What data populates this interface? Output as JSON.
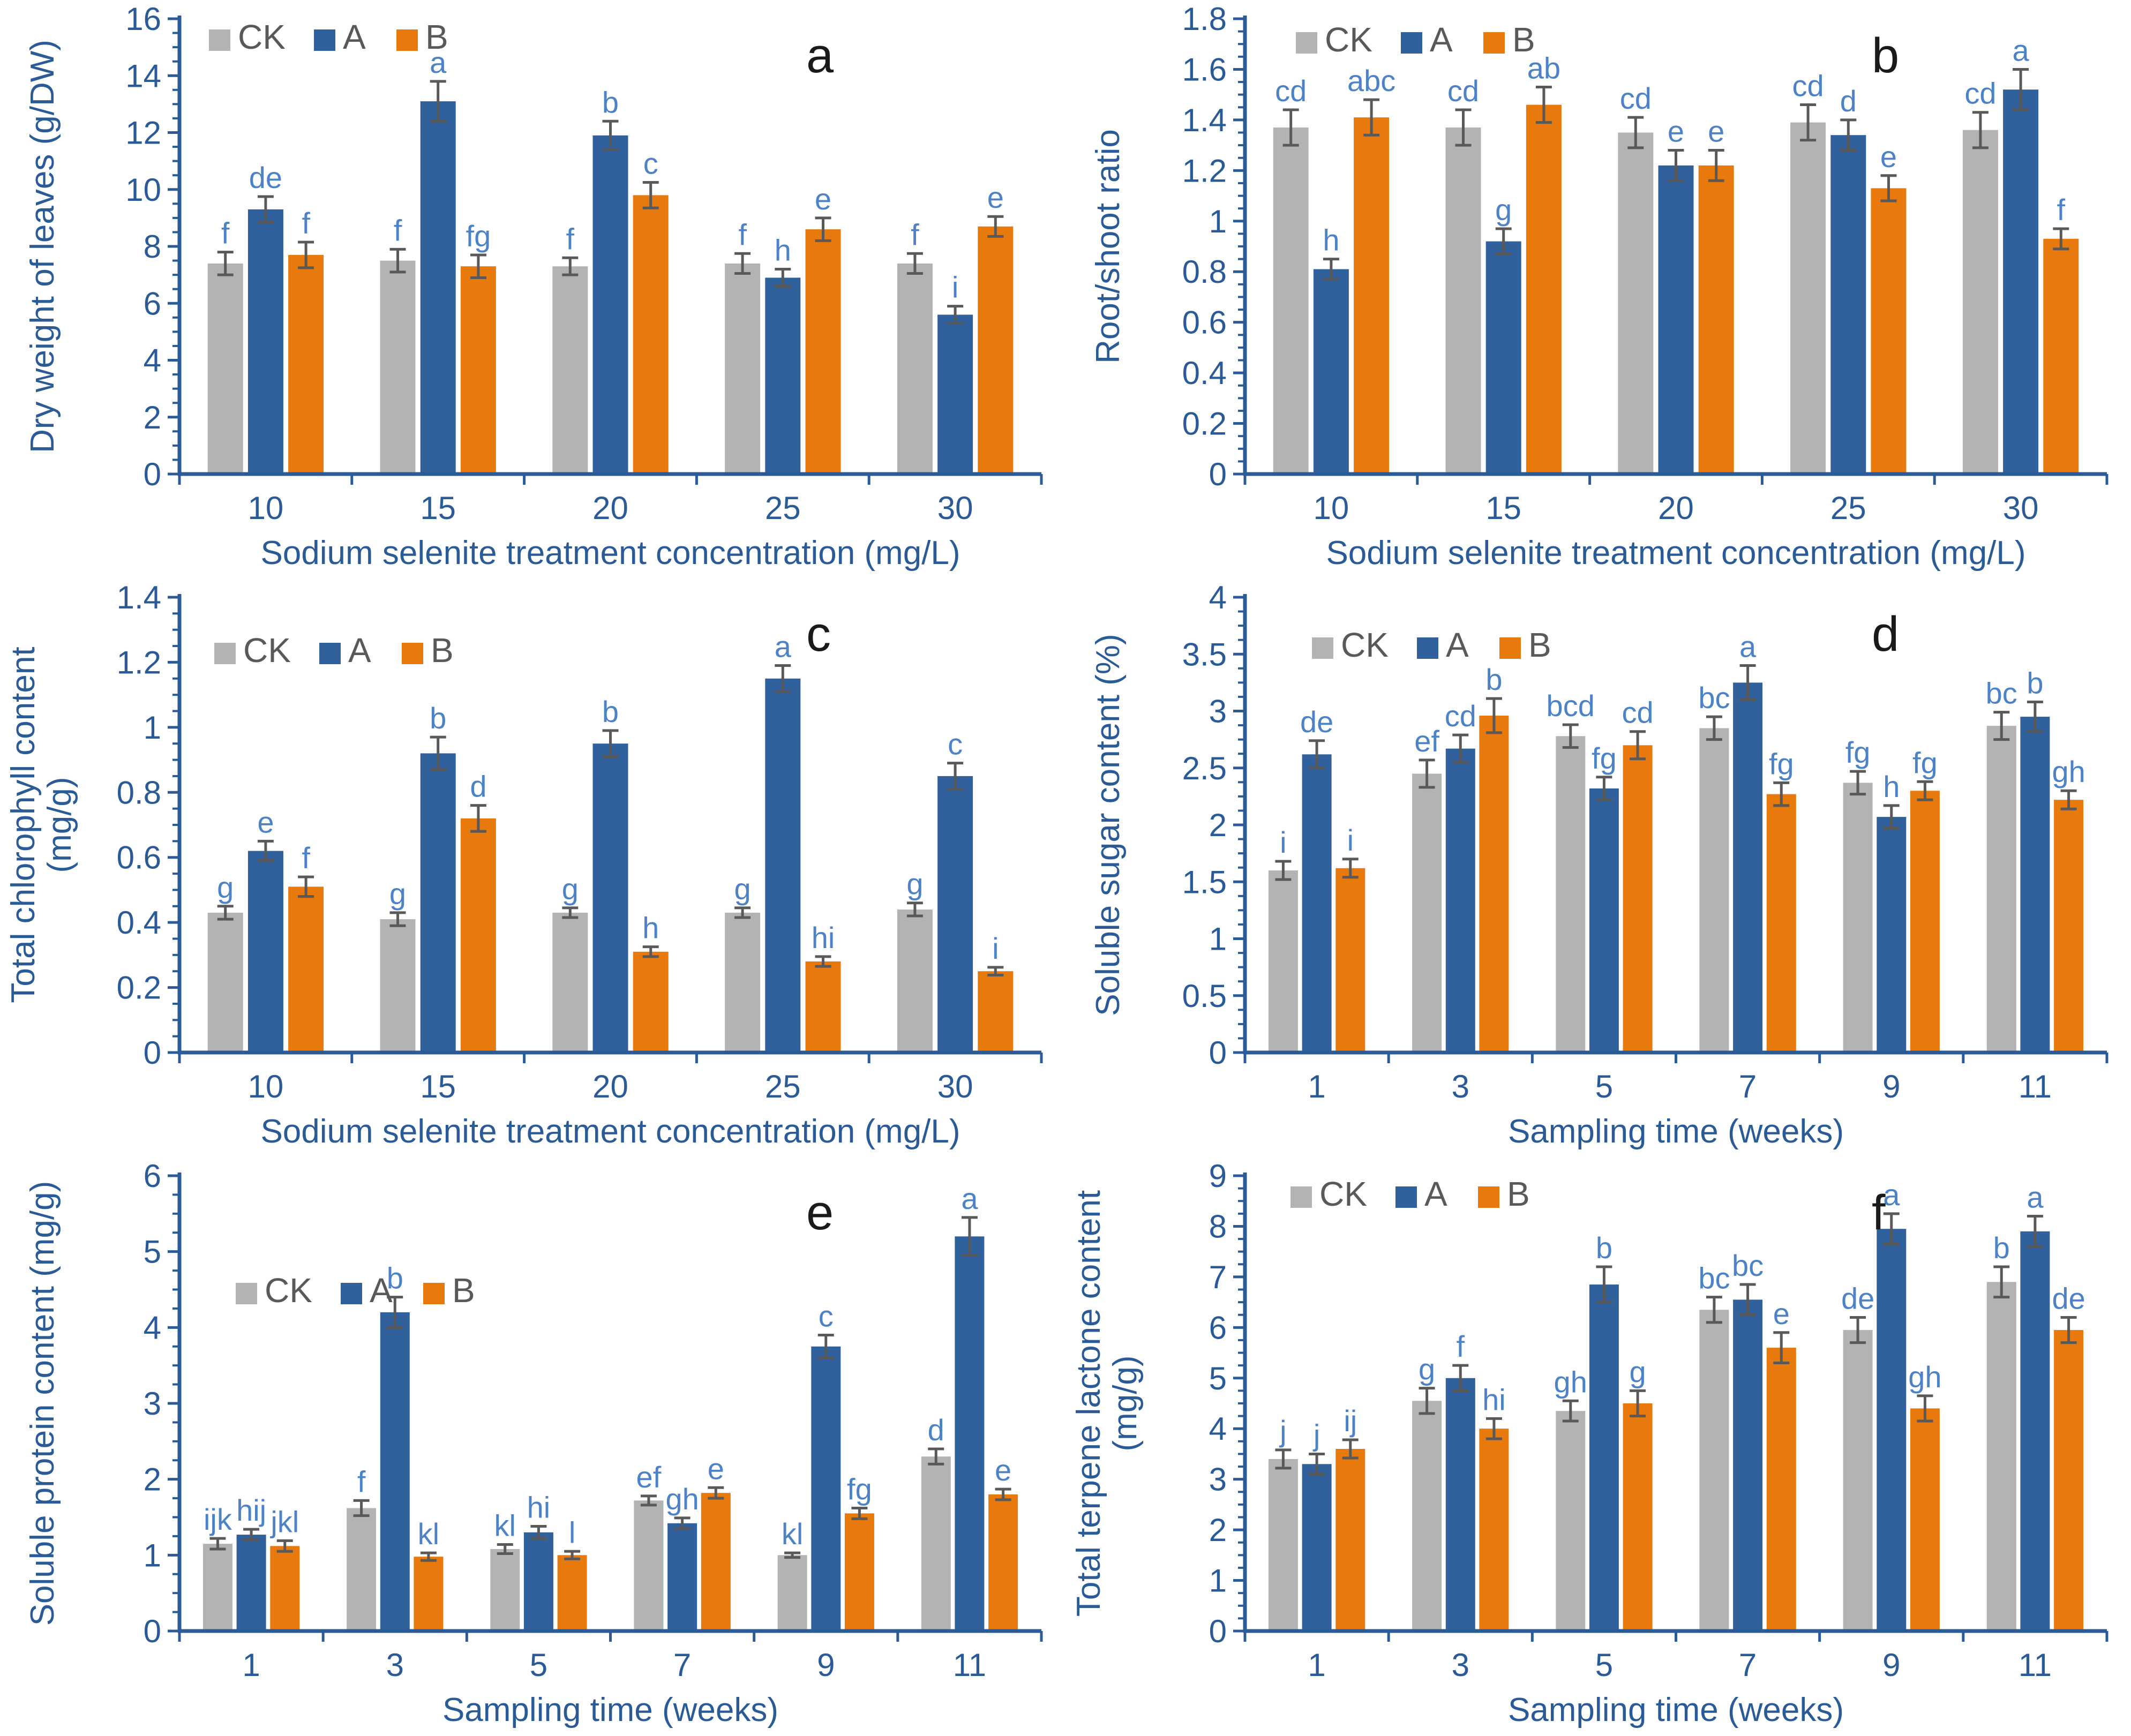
{
  "colors": {
    "background": "#ffffff",
    "bar_gray": "#b3b3b3",
    "bar_blue": "#31619c",
    "bar_orange": "#e8790d",
    "axis": "#2a5b96",
    "sig_letter": "#4d83c6",
    "error_bar": "#595959",
    "legend_text": "#595959",
    "panel_letter": "#1a1a1a"
  },
  "legend": {
    "labels": [
      "CK",
      "A",
      "B"
    ]
  },
  "chart_data": [
    {
      "panel": "a",
      "type": "bar",
      "ylabel_lines": [
        "Dry weight of leaves (g/DW)"
      ],
      "xlabel": "Sodium selenite treatment concentration (mg/L)",
      "categories": [
        "10",
        "15",
        "20",
        "25",
        "30"
      ],
      "ylim": [
        0,
        16
      ],
      "ytick_step": 2,
      "series": [
        {
          "name": "CK",
          "color_key": "bar_gray",
          "values": [
            7.4,
            7.5,
            7.3,
            7.4,
            7.4
          ],
          "errors": [
            0.4,
            0.4,
            0.3,
            0.35,
            0.35
          ],
          "letters": [
            "f",
            "f",
            "f",
            "f",
            "f"
          ]
        },
        {
          "name": "A",
          "color_key": "bar_blue",
          "values": [
            9.3,
            13.1,
            11.9,
            6.9,
            5.6
          ],
          "errors": [
            0.45,
            0.7,
            0.5,
            0.3,
            0.3
          ],
          "letters": [
            "de",
            "a",
            "b",
            "h",
            "i"
          ]
        },
        {
          "name": "B",
          "color_key": "bar_orange",
          "values": [
            7.7,
            7.3,
            9.8,
            8.6,
            8.7
          ],
          "errors": [
            0.45,
            0.4,
            0.45,
            0.4,
            0.35
          ],
          "letters": [
            "f",
            "fg",
            "c",
            "e",
            "e"
          ]
        }
      ]
    },
    {
      "panel": "b",
      "type": "bar",
      "ylabel_lines": [
        "Root/shoot ratio"
      ],
      "xlabel": "Sodium selenite treatment concentration (mg/L)",
      "categories": [
        "10",
        "15",
        "20",
        "25",
        "30"
      ],
      "ylim": [
        0,
        1.8
      ],
      "ytick_step": 0.2,
      "series": [
        {
          "name": "CK",
          "color_key": "bar_gray",
          "values": [
            1.37,
            1.37,
            1.35,
            1.39,
            1.36
          ],
          "errors": [
            0.07,
            0.07,
            0.06,
            0.07,
            0.07
          ],
          "letters": [
            "cd",
            "cd",
            "cd",
            "cd",
            "cd"
          ]
        },
        {
          "name": "A",
          "color_key": "bar_blue",
          "values": [
            0.81,
            0.92,
            1.22,
            1.34,
            1.52
          ],
          "errors": [
            0.04,
            0.05,
            0.06,
            0.06,
            0.08
          ],
          "letters": [
            "h",
            "g",
            "e",
            "d",
            "a"
          ]
        },
        {
          "name": "B",
          "color_key": "bar_orange",
          "values": [
            1.41,
            1.46,
            1.22,
            1.13,
            0.93
          ],
          "errors": [
            0.07,
            0.07,
            0.06,
            0.05,
            0.04
          ],
          "letters": [
            "abc",
            "ab",
            "e",
            "e",
            "f"
          ]
        }
      ]
    },
    {
      "panel": "c",
      "type": "bar",
      "ylabel_lines": [
        "Total chlorophyll content",
        "(mg/g)"
      ],
      "xlabel": "Sodium selenite treatment concentration (mg/L)",
      "categories": [
        "10",
        "15",
        "20",
        "25",
        "30"
      ],
      "ylim": [
        0,
        1.4
      ],
      "ytick_step": 0.2,
      "series": [
        {
          "name": "CK",
          "color_key": "bar_gray",
          "values": [
            0.43,
            0.41,
            0.43,
            0.43,
            0.44
          ],
          "errors": [
            0.02,
            0.02,
            0.015,
            0.015,
            0.02
          ],
          "letters": [
            "g",
            "g",
            "g",
            "g",
            "g"
          ]
        },
        {
          "name": "A",
          "color_key": "bar_blue",
          "values": [
            0.62,
            0.92,
            0.95,
            1.15,
            0.85
          ],
          "errors": [
            0.03,
            0.05,
            0.04,
            0.04,
            0.04
          ],
          "letters": [
            "e",
            "b",
            "b",
            "a",
            "c"
          ]
        },
        {
          "name": "B",
          "color_key": "bar_orange",
          "values": [
            0.51,
            0.72,
            0.31,
            0.28,
            0.25
          ],
          "errors": [
            0.03,
            0.04,
            0.015,
            0.015,
            0.012
          ],
          "letters": [
            "f",
            "d",
            "h",
            "hi",
            "i"
          ]
        }
      ]
    },
    {
      "panel": "d",
      "type": "bar",
      "ylabel_lines": [
        "Soluble sugar content (%)"
      ],
      "xlabel": "Sampling time (weeks)",
      "categories": [
        "1",
        "3",
        "5",
        "7",
        "9",
        "11"
      ],
      "ylim": [
        0,
        4
      ],
      "ytick_step": 0.5,
      "series": [
        {
          "name": "CK",
          "color_key": "bar_gray",
          "values": [
            1.6,
            2.45,
            2.78,
            2.85,
            2.37,
            2.87
          ],
          "errors": [
            0.08,
            0.12,
            0.1,
            0.1,
            0.1,
            0.12
          ],
          "letters": [
            "i",
            "ef",
            "bcd",
            "bc",
            "fg",
            "bc"
          ]
        },
        {
          "name": "A",
          "color_key": "bar_blue",
          "values": [
            2.62,
            2.67,
            2.32,
            3.25,
            2.07,
            2.95
          ],
          "errors": [
            0.12,
            0.12,
            0.1,
            0.15,
            0.1,
            0.13
          ],
          "letters": [
            "de",
            "cd",
            "fg",
            "a",
            "h",
            "b"
          ]
        },
        {
          "name": "B",
          "color_key": "bar_orange",
          "values": [
            1.62,
            2.96,
            2.7,
            2.27,
            2.3,
            2.22
          ],
          "errors": [
            0.08,
            0.15,
            0.12,
            0.1,
            0.08,
            0.08
          ],
          "letters": [
            "i",
            "b",
            "cd",
            "fg",
            "fg",
            "gh"
          ]
        }
      ]
    },
    {
      "panel": "e",
      "type": "bar",
      "ylabel_lines": [
        "Soluble protein content (mg/g)"
      ],
      "xlabel": "Sampling time (weeks)",
      "categories": [
        "1",
        "3",
        "5",
        "7",
        "9",
        "11"
      ],
      "ylim": [
        0,
        6
      ],
      "ytick_step": 1,
      "series": [
        {
          "name": "CK",
          "color_key": "bar_gray",
          "values": [
            1.15,
            1.62,
            1.08,
            1.72,
            1.0,
            2.3
          ],
          "errors": [
            0.07,
            0.1,
            0.06,
            0.06,
            0.03,
            0.1
          ],
          "letters": [
            "ijk",
            "f",
            "kl",
            "ef",
            "kl",
            "d"
          ]
        },
        {
          "name": "A",
          "color_key": "bar_blue",
          "values": [
            1.27,
            4.2,
            1.3,
            1.42,
            3.75,
            5.2
          ],
          "errors": [
            0.07,
            0.2,
            0.08,
            0.07,
            0.15,
            0.25
          ],
          "letters": [
            "hij",
            "b",
            "hi",
            "gh",
            "c",
            "a"
          ]
        },
        {
          "name": "B",
          "color_key": "bar_orange",
          "values": [
            1.12,
            0.98,
            1.0,
            1.82,
            1.55,
            1.8
          ],
          "errors": [
            0.07,
            0.05,
            0.05,
            0.07,
            0.07,
            0.07
          ],
          "letters": [
            "jkl",
            "kl",
            "l",
            "e",
            "fg",
            "e"
          ]
        }
      ]
    },
    {
      "panel": "f",
      "type": "bar",
      "ylabel_lines": [
        "Total terpene lactone content",
        "(mg/g)"
      ],
      "xlabel": "Sampling time (weeks)",
      "categories": [
        "1",
        "3",
        "5",
        "7",
        "9",
        "11"
      ],
      "ylim": [
        0,
        9
      ],
      "ytick_step": 1,
      "series": [
        {
          "name": "CK",
          "color_key": "bar_gray",
          "values": [
            3.4,
            4.55,
            4.35,
            6.35,
            5.95,
            6.9
          ],
          "errors": [
            0.18,
            0.25,
            0.2,
            0.25,
            0.25,
            0.3
          ],
          "letters": [
            "j",
            "g",
            "gh",
            "bc",
            "de",
            "b"
          ]
        },
        {
          "name": "A",
          "color_key": "bar_blue",
          "values": [
            3.3,
            5.0,
            6.85,
            6.55,
            7.95,
            7.9
          ],
          "errors": [
            0.2,
            0.25,
            0.35,
            0.3,
            0.3,
            0.3
          ],
          "letters": [
            "j",
            "f",
            "b",
            "bc",
            "a",
            "a"
          ]
        },
        {
          "name": "B",
          "color_key": "bar_orange",
          "values": [
            3.6,
            4.0,
            4.5,
            5.6,
            4.4,
            5.95
          ],
          "errors": [
            0.18,
            0.2,
            0.25,
            0.3,
            0.25,
            0.25
          ],
          "letters": [
            "ij",
            "hi",
            "g",
            "e",
            "gh",
            "de"
          ]
        }
      ]
    }
  ]
}
